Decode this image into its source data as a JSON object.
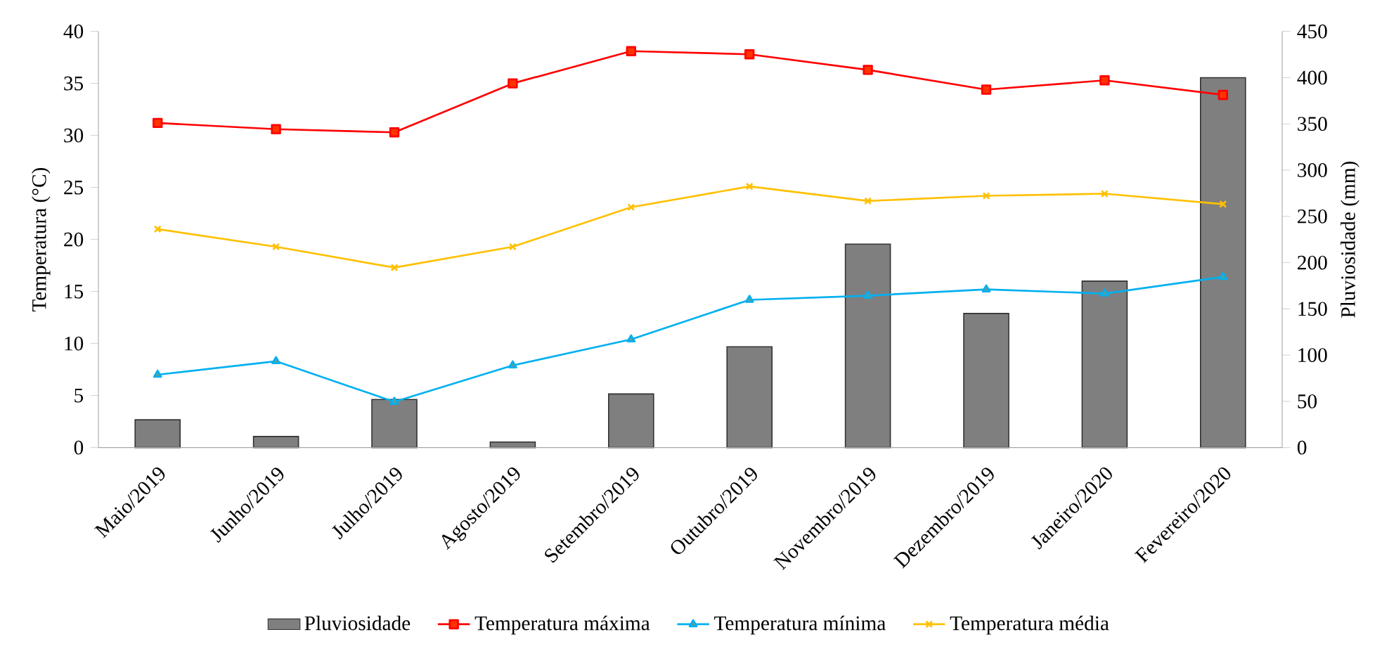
{
  "chart_data": {
    "type": "line",
    "categories": [
      "Maio/2019",
      "Junho/2019",
      "Julho/2019",
      "Agosto/2019",
      "Setembro/2019",
      "Outubro/2019",
      "Novembro/2019",
      "Dezembro/2019",
      "Janeiro/2020",
      "Fevereiro/2020"
    ],
    "ylabel": "Temperatura (°C)",
    "y2label": "Pluviosidade (mm)",
    "ylim": [
      0,
      40
    ],
    "yticks": [
      0,
      5,
      10,
      15,
      20,
      25,
      30,
      35,
      40
    ],
    "y2lim": [
      0,
      450
    ],
    "y2ticks": [
      0,
      50,
      100,
      150,
      200,
      250,
      300,
      350,
      400,
      450
    ],
    "legend": "bottom",
    "series": [
      {
        "name": "Pluviosidade",
        "type": "bar",
        "axis": "y2",
        "color": "#7f7f7f",
        "values": [
          30,
          12,
          52,
          6,
          58,
          109,
          220,
          145,
          180,
          400
        ]
      },
      {
        "name": "Temperatura máxima",
        "marker": "square",
        "color": "#ff0000",
        "values": [
          31.2,
          30.6,
          30.3,
          35.0,
          38.1,
          37.8,
          36.3,
          34.4,
          35.3,
          33.9
        ]
      },
      {
        "name": "Temperatura mínima",
        "marker": "triangle",
        "color": "#00b0f0",
        "values": [
          7.0,
          8.3,
          4.4,
          7.9,
          10.4,
          14.2,
          14.6,
          15.2,
          14.8,
          16.4
        ]
      },
      {
        "name": "Temperatura média",
        "marker": "cross",
        "color": "#ffc000",
        "values": [
          21.0,
          19.3,
          17.3,
          19.3,
          23.1,
          25.1,
          23.7,
          24.2,
          24.4,
          23.4
        ]
      }
    ]
  }
}
